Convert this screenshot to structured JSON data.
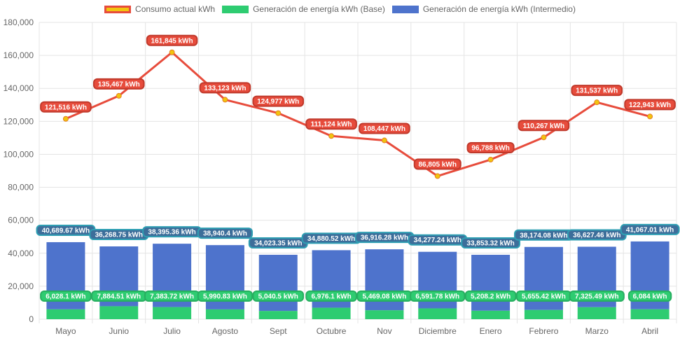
{
  "chart_data": {
    "type": "bar",
    "title": "",
    "xlabel": "",
    "ylabel": "",
    "ylim": [
      0,
      180000
    ],
    "yticks": [
      0,
      20000,
      40000,
      60000,
      80000,
      100000,
      120000,
      140000,
      160000,
      180000
    ],
    "ytick_labels": [
      "0",
      "20,000",
      "40,000",
      "60,000",
      "80,000",
      "100,000",
      "120,000",
      "140,000",
      "160,000",
      "180,000"
    ],
    "categories": [
      "Mayo",
      "Junio",
      "Julio",
      "Agosto",
      "Sept",
      "Octubre",
      "Nov",
      "Diciembre",
      "Enero",
      "Febrero",
      "Marzo",
      "Abril"
    ],
    "stacked": true,
    "legend_position": "top",
    "series": [
      {
        "name": "Consumo actual kWh",
        "type": "line",
        "color": "#e74c3c",
        "legend_fill": "#f1c40f",
        "values": [
          121516,
          135467,
          161845,
          133123,
          124977,
          111124,
          108447,
          86805,
          96788,
          110267,
          131537,
          122943
        ],
        "labels": [
          "121,516 kWh",
          "135,467 kWh",
          "161,845 kWh",
          "133,123 kWh",
          "124,977 kWh",
          "111,124 kWh",
          "108,447 kWh",
          "86,805 kWh",
          "96,788 kWh",
          "110,267 kWh",
          "131,537 kWh",
          "122,943 kWh"
        ]
      },
      {
        "name": "Generación de energía kWh (Base)",
        "type": "bar",
        "color": "#2ecc71",
        "values": [
          6028.1,
          7884.51,
          7383.72,
          5990.83,
          5040.5,
          6976.1,
          5469.08,
          6591.78,
          5208.2,
          5655.42,
          7325.49,
          6084
        ],
        "labels": [
          "6,028.1 kWh",
          "7,884.51 kWh",
          "7,383.72 kWh",
          "5,990.83 kWh",
          "5,040.5 kWh",
          "6,976.1 kWh",
          "5,469.08 kWh",
          "6,591.78 kWh",
          "5,208.2 kWh",
          "5,655.42 kWh",
          "7,325.49 kWh",
          "6,084 kWh"
        ]
      },
      {
        "name": "Generación de energía kWh (Intermedio)",
        "type": "bar",
        "color": "#4e73cc",
        "values": [
          40689.67,
          36268.75,
          38395.36,
          38940.4,
          34023.35,
          34880.52,
          36916.28,
          34277.24,
          33853.32,
          38174.08,
          36627.46,
          41067.01
        ],
        "labels": [
          "40,689.67 kWh",
          "36,268.75 kWh",
          "38,395.36 kWh",
          "38,940.4 kWh",
          "34,023.35 kWh",
          "34,880.52 kWh",
          "36,916.28 kWh",
          "34,277.24 kWh",
          "33,853.32 kWh",
          "38,174.08 kWh",
          "36,627.46 kWh",
          "41,067.01 kWh"
        ]
      }
    ]
  }
}
